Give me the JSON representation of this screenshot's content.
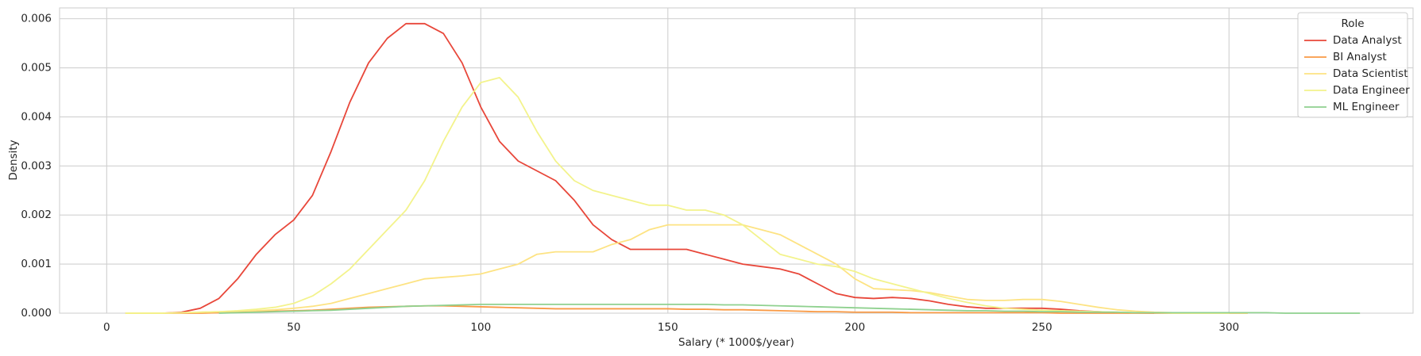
{
  "chart_data": {
    "type": "line",
    "x_label": "Salary (* 1000$/year)",
    "y_label": "Density",
    "legend_title": "Role",
    "legend": "upper right",
    "grid": true,
    "xlim": [
      -12.6,
      349.2
    ],
    "ylim": [
      0,
      0.00622
    ],
    "xticks": [
      0,
      50,
      100,
      150,
      200,
      250,
      300
    ],
    "yticks": [
      {
        "value": 0,
        "label": "0.000"
      },
      0.001,
      0.002,
      0.003,
      0.004,
      0.005,
      0.006
    ],
    "x": [
      5,
      10,
      15,
      20,
      25,
      30,
      35,
      40,
      45,
      50,
      55,
      60,
      65,
      70,
      75,
      80,
      85,
      90,
      95,
      100,
      105,
      110,
      115,
      120,
      125,
      130,
      135,
      140,
      145,
      150,
      155,
      160,
      165,
      170,
      175,
      180,
      185,
      190,
      195,
      200,
      205,
      210,
      215,
      220,
      225,
      230,
      235,
      240,
      245,
      250,
      255,
      260,
      265,
      270,
      275,
      280,
      285,
      290,
      295,
      300,
      305,
      310,
      315,
      320,
      325,
      330,
      335
    ],
    "series": [
      {
        "name": "Data Analyst",
        "color": "#e8473a",
        "values": [
          null,
          null,
          0,
          2e-05,
          0.0001,
          0.0003,
          0.0007,
          0.0012,
          0.0016,
          0.0019,
          0.0024,
          0.0033,
          0.0043,
          0.0051,
          0.0056,
          0.0059,
          0.0059,
          0.0057,
          0.0051,
          0.0042,
          0.0035,
          0.0031,
          0.0029,
          0.0027,
          0.0023,
          0.0018,
          0.0015,
          0.0013,
          0.0013,
          0.0013,
          0.0013,
          0.0012,
          0.0011,
          0.001,
          0.00095,
          0.0009,
          0.0008,
          0.0006,
          0.0004,
          0.00032,
          0.0003,
          0.00032,
          0.0003,
          0.00025,
          0.00018,
          0.00013,
          0.0001,
          0.0001,
          0.0001,
          0.0001,
          8e-05,
          5e-05,
          3e-05,
          1e-05,
          5e-06,
          0,
          null,
          null,
          null,
          null,
          null,
          null,
          null,
          null,
          null,
          null,
          null
        ]
      },
      {
        "name": "BI Analyst",
        "color": "#f99a45",
        "values": [
          0,
          0,
          0,
          0,
          0,
          1e-05,
          2e-05,
          3e-05,
          4e-05,
          5e-05,
          6e-05,
          8e-05,
          0.0001,
          0.00012,
          0.00013,
          0.00014,
          0.00015,
          0.00015,
          0.00014,
          0.00013,
          0.00012,
          0.00011,
          0.0001,
          9e-05,
          9e-05,
          9e-05,
          9e-05,
          9e-05,
          9e-05,
          9e-05,
          8e-05,
          8e-05,
          7e-05,
          7e-05,
          6e-05,
          5e-05,
          4e-05,
          3e-05,
          3e-05,
          2e-05,
          2e-05,
          2e-05,
          1e-05,
          1e-05,
          1e-05,
          1e-05,
          1e-05,
          1e-05,
          1e-05,
          1e-05,
          0,
          0,
          0,
          0,
          0,
          0,
          0,
          0,
          0,
          0,
          0,
          null,
          null,
          null,
          null,
          null,
          null
        ]
      },
      {
        "name": "Data Scientist",
        "color": "#fde383",
        "values": [
          0,
          0,
          0,
          1e-05,
          2e-05,
          3e-05,
          4e-05,
          5e-05,
          7e-05,
          0.0001,
          0.00014,
          0.0002,
          0.0003,
          0.0004,
          0.0005,
          0.0006,
          0.0007,
          0.00073,
          0.00076,
          0.0008,
          0.0009,
          0.001,
          0.0012,
          0.00125,
          0.00125,
          0.00125,
          0.0014,
          0.0015,
          0.0017,
          0.0018,
          0.0018,
          0.0018,
          0.0018,
          0.0018,
          0.0017,
          0.0016,
          0.0014,
          0.0012,
          0.001,
          0.0007,
          0.0005,
          0.00048,
          0.00046,
          0.00042,
          0.00035,
          0.00028,
          0.00026,
          0.00026,
          0.00028,
          0.00028,
          0.00024,
          0.00018,
          0.00012,
          7e-05,
          4e-05,
          2e-05,
          1e-05,
          0,
          0,
          0,
          0,
          null,
          null,
          null,
          null,
          null,
          null
        ]
      },
      {
        "name": "Data Engineer",
        "color": "#f3f38c",
        "values": [
          0,
          0,
          0,
          1e-05,
          2e-05,
          3e-05,
          5e-05,
          8e-05,
          0.00012,
          0.0002,
          0.00035,
          0.0006,
          0.0009,
          0.0013,
          0.0017,
          0.0021,
          0.0027,
          0.0035,
          0.0042,
          0.0047,
          0.0048,
          0.0044,
          0.0037,
          0.0031,
          0.0027,
          0.0025,
          0.0024,
          0.0023,
          0.0022,
          0.0022,
          0.0021,
          0.0021,
          0.002,
          0.0018,
          0.0015,
          0.0012,
          0.0011,
          0.001,
          0.00095,
          0.00085,
          0.0007,
          0.0006,
          0.0005,
          0.0004,
          0.0003,
          0.00022,
          0.00015,
          0.0001,
          8e-05,
          6e-05,
          5e-05,
          4e-05,
          3e-05,
          2e-05,
          1e-05,
          1e-05,
          0,
          0,
          0,
          0,
          null,
          null,
          null,
          null,
          null,
          null,
          null
        ]
      },
      {
        "name": "ML Engineer",
        "color": "#8fd18f",
        "values": [
          null,
          null,
          null,
          null,
          null,
          0,
          1e-05,
          2e-05,
          3e-05,
          4e-05,
          5e-05,
          6e-05,
          8e-05,
          0.0001,
          0.00012,
          0.00014,
          0.00015,
          0.00016,
          0.00017,
          0.00018,
          0.00018,
          0.00018,
          0.00018,
          0.00018,
          0.00018,
          0.00018,
          0.00018,
          0.00018,
          0.00018,
          0.00018,
          0.00018,
          0.00018,
          0.00017,
          0.00017,
          0.00016,
          0.00015,
          0.00014,
          0.00013,
          0.00012,
          0.00011,
          0.0001,
          9e-05,
          8e-05,
          7e-05,
          6e-05,
          5e-05,
          5e-05,
          4e-05,
          4e-05,
          3e-05,
          3e-05,
          2e-05,
          2e-05,
          2e-05,
          1e-05,
          1e-05,
          1e-05,
          1e-05,
          1e-05,
          1e-05,
          1e-05,
          1e-05,
          0,
          0,
          0,
          0,
          0
        ]
      }
    ]
  }
}
